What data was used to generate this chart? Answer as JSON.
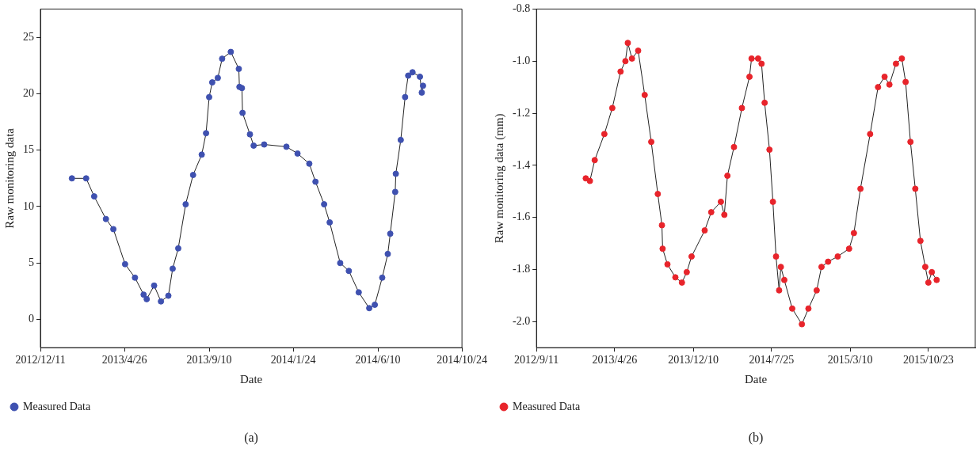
{
  "chart_data": [
    {
      "type": "line",
      "xlabel": "Date",
      "ylabel": "Raw monitoring data",
      "xlim": [
        "2012-12-11",
        "2014-10-24"
      ],
      "ylim": [
        -2.5,
        27.5
      ],
      "xticks": [
        {
          "value": "2012-12-11",
          "label": "2012/12/11"
        },
        {
          "value": "2013-04-26",
          "label": "2013/4/26"
        },
        {
          "value": "2013-09-10",
          "label": "2013/9/10"
        },
        {
          "value": "2014-01-24",
          "label": "2014/1/24"
        },
        {
          "value": "2014-06-10",
          "label": "2014/6/10"
        },
        {
          "value": "2014-10-24",
          "label": "2014/10/24"
        }
      ],
      "yticks": [
        0,
        5,
        10,
        15,
        20,
        25
      ],
      "grid": false,
      "legend": "bottom left",
      "marker": "circle",
      "line_style": "solid",
      "annotations": [
        "(a)"
      ],
      "series": [
        {
          "name": "Measured Data",
          "color": "#3f51b0",
          "x": [
            "2013-01-31",
            "2013-02-23",
            "2013-03-08",
            "2013-03-27",
            "2013-04-08",
            "2013-04-27",
            "2013-05-13",
            "2013-05-27",
            "2013-06-01",
            "2013-06-13",
            "2013-06-24",
            "2013-07-06",
            "2013-07-13",
            "2013-07-22",
            "2013-08-03",
            "2013-08-15",
            "2013-08-29",
            "2013-09-05",
            "2013-09-10",
            "2013-09-15",
            "2013-09-24",
            "2013-10-01",
            "2013-10-15",
            "2013-10-28",
            "2013-10-29",
            "2013-11-02",
            "2013-11-03",
            "2013-11-15",
            "2013-11-21",
            "2013-12-08",
            "2014-01-13",
            "2014-01-31",
            "2014-02-19",
            "2014-03-01",
            "2014-03-15",
            "2014-03-24",
            "2014-04-10",
            "2014-04-24",
            "2014-05-10",
            "2014-05-27",
            "2014-06-05",
            "2014-06-17",
            "2014-06-26",
            "2014-06-30",
            "2014-07-08",
            "2014-07-09",
            "2014-07-17",
            "2014-07-24",
            "2014-07-29",
            "2014-08-05",
            "2014-08-17",
            "2014-08-20",
            "2014-08-22"
          ],
          "values": [
            12.5,
            12.5,
            10.9,
            8.9,
            8.0,
            4.9,
            3.7,
            2.2,
            1.8,
            3.0,
            1.6,
            2.1,
            4.5,
            6.3,
            10.2,
            12.8,
            14.6,
            16.5,
            19.7,
            21.0,
            21.4,
            23.1,
            23.7,
            22.2,
            20.6,
            20.5,
            18.3,
            16.4,
            15.4,
            15.5,
            15.3,
            14.7,
            13.8,
            12.2,
            10.2,
            8.6,
            5.0,
            4.3,
            2.4,
            1.0,
            1.3,
            3.7,
            5.8,
            7.6,
            11.3,
            12.9,
            15.9,
            19.7,
            21.6,
            21.9,
            21.5,
            20.1,
            20.7
          ]
        }
      ]
    },
    {
      "type": "line",
      "xlabel": "Date",
      "ylabel": "Raw monitoring data (mm)",
      "xlim": [
        "2012-09-11",
        "2016-03-07"
      ],
      "ylim": [
        -2.1,
        -0.8
      ],
      "xticks": [
        {
          "value": "2012-09-11",
          "label": "2012/9/11"
        },
        {
          "value": "2013-04-26",
          "label": "2013/4/26"
        },
        {
          "value": "2013-12-10",
          "label": "2013/12/10"
        },
        {
          "value": "2014-07-25",
          "label": "2014/7/25"
        },
        {
          "value": "2015-03-10",
          "label": "2015/3/10"
        },
        {
          "value": "2015-10-23",
          "label": "2015/10/23"
        }
      ],
      "yticks": [
        {
          "value": -0.8,
          "label": "-0.8"
        },
        {
          "value": -1,
          "label": "-1.0"
        },
        {
          "value": -1.2,
          "label": "-1.2"
        },
        {
          "value": -1.4,
          "label": "-1.4"
        },
        {
          "value": -1.6,
          "label": "-1.6"
        },
        {
          "value": -1.8,
          "label": "-1.8"
        },
        {
          "value": -2,
          "label": "-2.0"
        }
      ],
      "grid": false,
      "legend": "bottom left",
      "marker": "circle",
      "line_style": "solid",
      "annotations": [
        "(b)"
      ],
      "series": [
        {
          "name": "Measured Data",
          "color": "#e8242b",
          "x": [
            "2013-02-01",
            "2013-02-13",
            "2013-02-27",
            "2013-03-27",
            "2013-04-19",
            "2013-05-13",
            "2013-05-27",
            "2013-06-03",
            "2013-06-15",
            "2013-07-03",
            "2013-07-22",
            "2013-08-10",
            "2013-08-29",
            "2013-09-10",
            "2013-09-12",
            "2013-09-26",
            "2013-10-19",
            "2013-11-07",
            "2013-11-21",
            "2013-12-05",
            "2014-01-12",
            "2014-01-31",
            "2014-02-28",
            "2014-03-10",
            "2014-03-19",
            "2014-04-07",
            "2014-04-30",
            "2014-05-22",
            "2014-05-28",
            "2014-06-16",
            "2014-06-26",
            "2014-07-05",
            "2014-07-19",
            "2014-07-29",
            "2014-08-07",
            "2014-08-16",
            "2014-08-21",
            "2014-08-31",
            "2014-09-23",
            "2014-10-21",
            "2014-11-09",
            "2014-12-03",
            "2014-12-17",
            "2015-01-05",
            "2015-02-02",
            "2015-03-07",
            "2015-03-21",
            "2015-04-09",
            "2015-05-07",
            "2015-05-30",
            "2015-06-18",
            "2015-07-02",
            "2015-07-21",
            "2015-08-07",
            "2015-08-18",
            "2015-09-01",
            "2015-09-15",
            "2015-09-30",
            "2015-10-14",
            "2015-10-23",
            "2015-11-02",
            "2015-11-16"
          ],
          "values": [
            -1.45,
            -1.46,
            -1.38,
            -1.28,
            -1.18,
            -1.04,
            -1.0,
            -0.93,
            -0.99,
            -0.96,
            -1.13,
            -1.31,
            -1.51,
            -1.63,
            -1.72,
            -1.78,
            -1.83,
            -1.85,
            -1.81,
            -1.75,
            -1.65,
            -1.58,
            -1.54,
            -1.59,
            -1.44,
            -1.33,
            -1.18,
            -1.06,
            -0.99,
            -0.99,
            -1.01,
            -1.16,
            -1.34,
            -1.54,
            -1.75,
            -1.88,
            -1.79,
            -1.84,
            -1.95,
            -2.01,
            -1.95,
            -1.88,
            -1.79,
            -1.77,
            -1.75,
            -1.72,
            -1.66,
            -1.49,
            -1.28,
            -1.1,
            -1.06,
            -1.09,
            -1.01,
            -0.99,
            -1.08,
            -1.31,
            -1.49,
            -1.69,
            -1.79,
            -1.85,
            -1.81,
            -1.84
          ]
        }
      ]
    }
  ]
}
